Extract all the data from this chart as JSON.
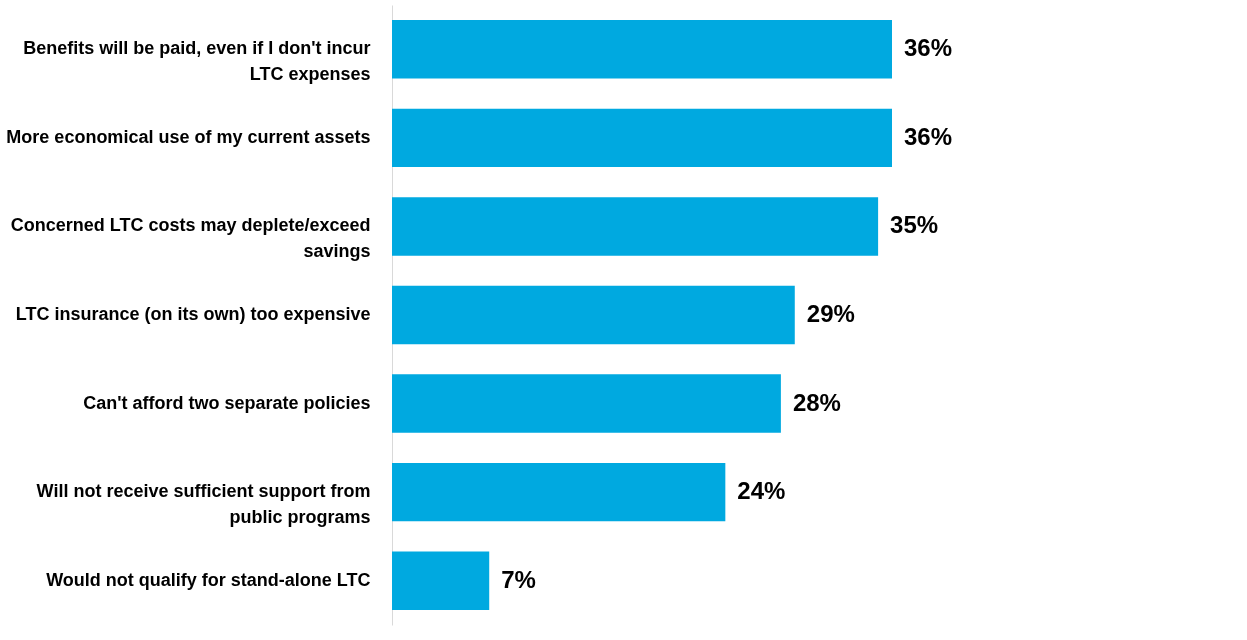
{
  "chart_data": {
    "type": "bar",
    "orientation": "horizontal",
    "categories": [
      "Benefits will be paid, even if I don't incur LTC expenses",
      "More economical use of my current assets",
      "Concerned LTC costs may deplete/exceed savings",
      "LTC insurance (on its own) too expensive",
      "Can't afford two separate policies",
      "Will not receive sufficient support from public programs",
      "Would not qualify for stand-alone LTC"
    ],
    "values": [
      36,
      36,
      35,
      29,
      28,
      24,
      7
    ],
    "value_labels": [
      "36%",
      "36%",
      "35%",
      "29%",
      "28%",
      "24%",
      "7%"
    ],
    "color": "#00a9e0",
    "grid": false
  }
}
